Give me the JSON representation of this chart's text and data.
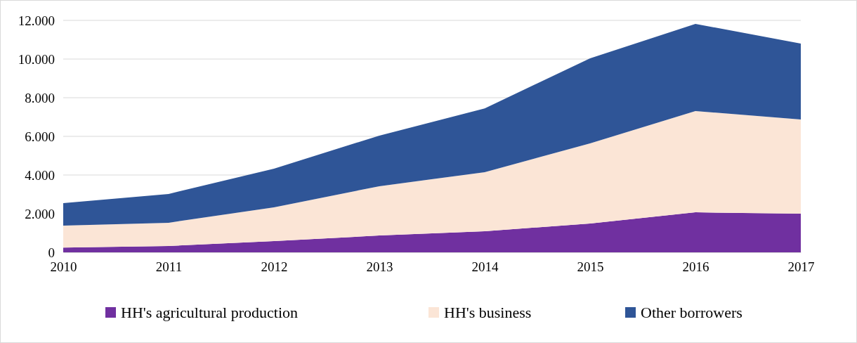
{
  "chart_data": {
    "type": "area",
    "stacked": true,
    "x": [
      2010,
      2011,
      2012,
      2013,
      2014,
      2015,
      2016,
      2017
    ],
    "xlim": [
      2010,
      2017
    ],
    "xticks": [
      2010,
      2011,
      2012,
      2013,
      2014,
      2015,
      2016,
      2017
    ],
    "ylim": [
      0,
      12000
    ],
    "yticks": [
      0,
      {
        "value": 2000,
        "label": "2.000"
      },
      {
        "value": 4000,
        "label": "4.000"
      },
      {
        "value": 6000,
        "label": "6.000"
      },
      {
        "value": 8000,
        "label": "8.000"
      },
      {
        "value": 10000,
        "label": "10.000"
      },
      {
        "value": 12000,
        "label": "12.000"
      }
    ],
    "grid": "y",
    "legend": "bottom",
    "series": [
      {
        "name": "HH's agricultural production",
        "color": "#7030a0",
        "values": [
          250,
          330,
          580,
          870,
          1090,
          1490,
          2070,
          2000
        ]
      },
      {
        "name": "HH's business",
        "color": "#fbe5d6",
        "values": [
          1130,
          1200,
          1750,
          2550,
          3060,
          4150,
          5240,
          4870
        ]
      },
      {
        "name": "Other borrowers",
        "color": "#2f5597",
        "values": [
          1170,
          1490,
          2000,
          2620,
          3300,
          4400,
          4510,
          3930
        ]
      }
    ]
  }
}
